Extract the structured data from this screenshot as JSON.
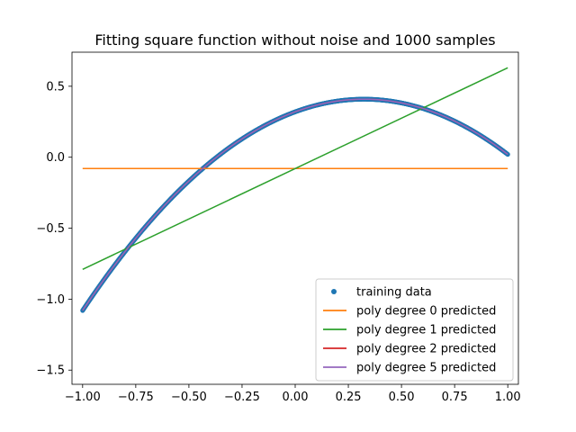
{
  "chart_data": {
    "type": "scatter",
    "title": "Fitting square function without noise and 1000 samples",
    "xlabel": "",
    "ylabel": "",
    "xlim": [
      -1.05,
      1.05
    ],
    "ylim": [
      -1.6,
      0.74
    ],
    "x_ticks": [
      -1.0,
      -0.75,
      -0.5,
      -0.25,
      0.0,
      0.25,
      0.5,
      0.75,
      1.0
    ],
    "x_tick_labels": [
      "−1.00",
      "−0.75",
      "−0.50",
      "−0.25",
      "0.00",
      "0.25",
      "0.50",
      "0.75",
      "1.00"
    ],
    "y_ticks": [
      -1.5,
      -1.0,
      -0.5,
      0.0,
      0.5
    ],
    "y_tick_labels": [
      "−1.5",
      "−1.0",
      "−0.5",
      "0.0",
      "0.5"
    ],
    "grid": false,
    "legend_position": "bottom-right",
    "series": [
      {
        "name": "training data",
        "kind": "scatter",
        "color": "#1f77b4",
        "function": "y = -0.85x^2 + 0.55x + 0.32",
        "x_range": [
          -1.0,
          1.0
        ],
        "samples": 1000,
        "x": [
          -1.0,
          -0.9,
          -0.8,
          -0.7,
          -0.6,
          -0.5,
          -0.4,
          -0.3,
          -0.2,
          -0.1,
          0.0,
          0.1,
          0.2,
          0.3,
          0.4,
          0.5,
          0.6,
          0.7,
          0.8,
          0.9,
          1.0
        ],
        "y": [
          -1.08,
          -0.86,
          -0.66,
          -0.48,
          -0.32,
          -0.17,
          -0.04,
          0.08,
          0.17,
          0.26,
          0.32,
          0.37,
          0.4,
          0.41,
          0.4,
          0.38,
          0.33,
          0.27,
          0.18,
          0.07,
          -0.06
        ]
      },
      {
        "name": "poly degree 0 predicted",
        "kind": "line",
        "color": "#ff7f0e",
        "x": [
          -1.0,
          1.0
        ],
        "y": [
          -0.08,
          -0.08
        ]
      },
      {
        "name": "poly degree 1 predicted",
        "kind": "line",
        "color": "#2ca02c",
        "x": [
          -1.0,
          1.0
        ],
        "y": [
          -0.79,
          0.63
        ]
      },
      {
        "name": "poly degree 2 predicted",
        "kind": "line",
        "color": "#d62728",
        "function": "y = -0.85x^2 + 0.55x + 0.32"
      },
      {
        "name": "poly degree 5 predicted",
        "kind": "line",
        "color": "#9467bd",
        "function": "y = -0.85x^2 + 0.55x + 0.32"
      }
    ]
  }
}
